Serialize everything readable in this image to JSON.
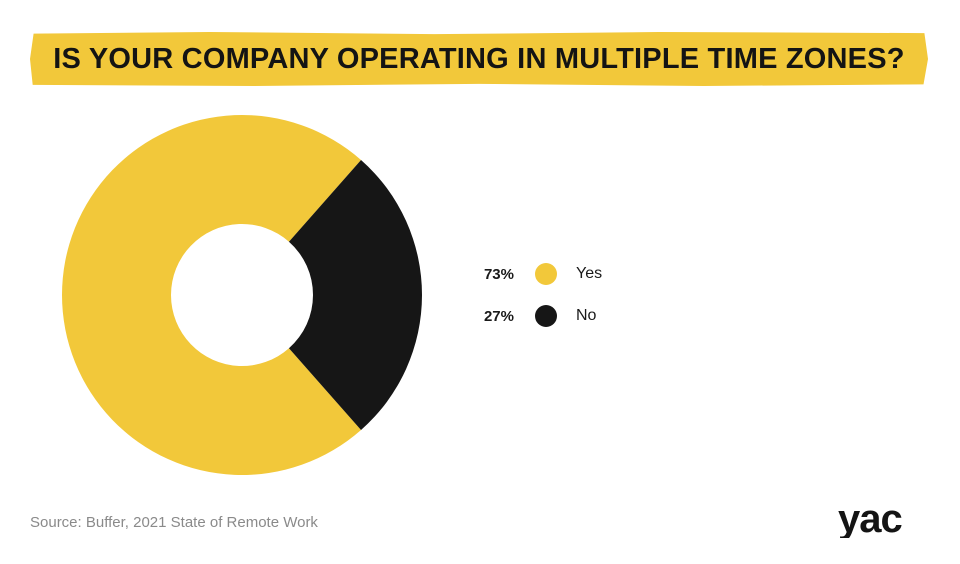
{
  "title": "IS YOUR COMPANY OPERATING IN MULTIPLE TIME ZONES?",
  "source": "Source: Buffer, 2021 State of Remote Work",
  "logo_text": "yac",
  "colors": {
    "accent": "#f2c83a",
    "dark": "#161616",
    "source_text": "#8a8a8a"
  },
  "chart_data": {
    "type": "pie",
    "variant": "donut",
    "title": "IS YOUR COMPANY OPERATING IN MULTIPLE TIME ZONES?",
    "categories": [
      "Yes",
      "No"
    ],
    "values": [
      73,
      27
    ],
    "value_labels": [
      "73%",
      "27%"
    ],
    "colors": [
      "#f2c83a",
      "#161616"
    ],
    "legend_position": "right"
  }
}
